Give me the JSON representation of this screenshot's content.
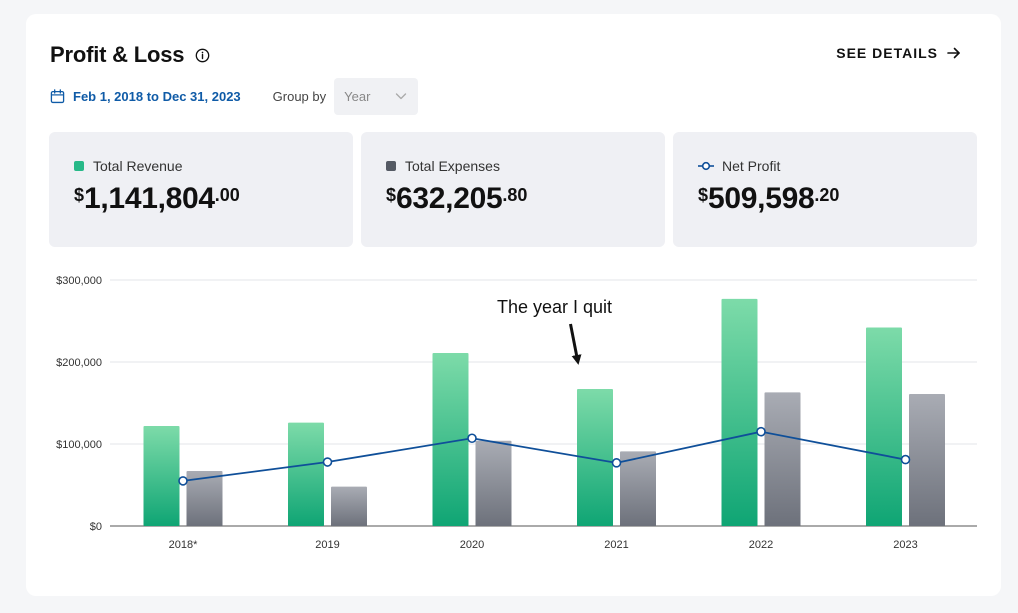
{
  "header": {
    "title": "Profit & Loss",
    "see_details": "SEE DETAILS",
    "date_range": "Feb 1, 2018 to Dec 31, 2023",
    "group_by_label": "Group by",
    "group_by_value": "Year"
  },
  "stats": [
    {
      "label": "Total Revenue",
      "currency": "$",
      "whole": "1,141,804",
      "cents": ".00"
    },
    {
      "label": "Total Expenses",
      "currency": "$",
      "whole": "632,205",
      "cents": ".80"
    },
    {
      "label": "Net Profit",
      "currency": "$",
      "whole": "509,598",
      "cents": ".20"
    }
  ],
  "colors": {
    "revenue_top": "#7ddba9",
    "revenue_bottom": "#0fa574",
    "expense_top": "#a9acb4",
    "expense_bottom": "#6d717b",
    "profit_line": "#0f4f99",
    "accent_blue": "#0f5ba7"
  },
  "chart_data": {
    "type": "bar",
    "categories": [
      "2018*",
      "2019",
      "2020",
      "2021",
      "2022",
      "2023"
    ],
    "series": [
      {
        "name": "Total Revenue",
        "type": "bar",
        "values": [
          122000,
          126000,
          211000,
          167000,
          277000,
          242000
        ]
      },
      {
        "name": "Total Expenses",
        "type": "bar",
        "values": [
          67000,
          48000,
          104000,
          91000,
          163000,
          161000
        ]
      },
      {
        "name": "Net Profit",
        "type": "line",
        "values": [
          55000,
          78000,
          107000,
          77000,
          115000,
          81000
        ]
      }
    ],
    "y_ticks": [
      {
        "value": 0,
        "label": "$0"
      },
      {
        "value": 100000,
        "label": "$100,000"
      },
      {
        "value": 200000,
        "label": "$200,000"
      },
      {
        "value": 300000,
        "label": "$300,000"
      }
    ],
    "ylim": [
      0,
      300000
    ],
    "annotation": {
      "text": "The year I quit",
      "category": "2021"
    }
  }
}
